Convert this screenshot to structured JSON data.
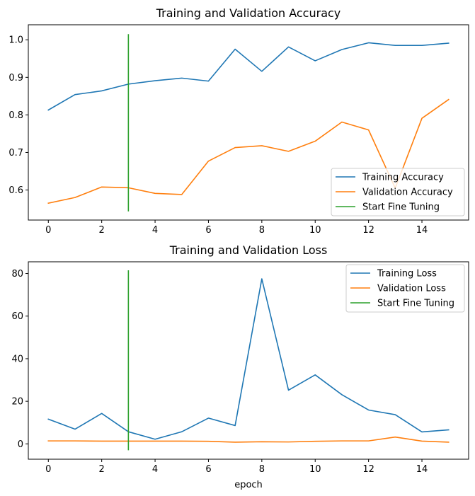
{
  "chart_data": [
    {
      "type": "line",
      "title": "Training and Validation Accuracy",
      "xlabel": "",
      "ylabel": "",
      "xlim": [
        -0.75,
        15.75
      ],
      "ylim": [
        0.52,
        1.04
      ],
      "xticks": [
        0,
        2,
        4,
        6,
        8,
        10,
        12,
        14
      ],
      "xtick_labels": [
        "0",
        "2",
        "4",
        "6",
        "8",
        "10",
        "12",
        "14"
      ],
      "yticks": [
        0.6,
        0.7,
        0.8,
        0.9,
        1.0
      ],
      "ytick_labels": [
        "0.6",
        "0.7",
        "0.8",
        "0.9",
        "1.0"
      ],
      "legend_position": "lower-right",
      "x": [
        0,
        1,
        2,
        3,
        4,
        5,
        6,
        7,
        8,
        9,
        10,
        11,
        12,
        13,
        14,
        15
      ],
      "series": [
        {
          "name": "Training Accuracy",
          "color": "#1f77b4",
          "values": [
            0.813,
            0.854,
            0.864,
            0.882,
            0.891,
            0.898,
            0.89,
            0.975,
            0.916,
            0.981,
            0.944,
            0.974,
            0.992,
            0.985,
            0.985,
            0.991
          ]
        },
        {
          "name": "Validation Accuracy",
          "color": "#ff7f0e",
          "values": [
            0.565,
            0.58,
            0.608,
            0.606,
            0.591,
            0.588,
            0.677,
            0.713,
            0.718,
            0.703,
            0.73,
            0.781,
            0.76,
            0.605,
            0.791,
            0.841
          ]
        }
      ],
      "vline": {
        "name": "Start Fine Tuning",
        "color": "#2ca02c",
        "x": 3,
        "y_range": [
          0.543,
          1.015
        ]
      }
    },
    {
      "type": "line",
      "title": "Training and Validation Loss",
      "xlabel": "epoch",
      "ylabel": "",
      "xlim": [
        -0.75,
        15.75
      ],
      "ylim": [
        -7.2,
        85.5
      ],
      "xticks": [
        0,
        2,
        4,
        6,
        8,
        10,
        12,
        14
      ],
      "xtick_labels": [
        "0",
        "2",
        "4",
        "6",
        "8",
        "10",
        "12",
        "14"
      ],
      "yticks": [
        0,
        20,
        40,
        60,
        80
      ],
      "ytick_labels": [
        "0",
        "20",
        "40",
        "60",
        "80"
      ],
      "legend_position": "upper-right",
      "x": [
        0,
        1,
        2,
        3,
        4,
        5,
        6,
        7,
        8,
        9,
        10,
        11,
        12,
        13,
        14,
        15
      ],
      "series": [
        {
          "name": "Training Loss",
          "color": "#1f77b4",
          "values": [
            11.6,
            6.9,
            14.3,
            5.7,
            2.2,
            5.7,
            12.1,
            8.6,
            77.5,
            25.2,
            32.4,
            23.1,
            15.9,
            13.7,
            5.6,
            6.6
          ]
        },
        {
          "name": "Validation Loss",
          "color": "#ff7f0e",
          "values": [
            1.4,
            1.4,
            1.3,
            1.3,
            1.3,
            1.3,
            1.2,
            0.8,
            1.0,
            0.9,
            1.2,
            1.4,
            1.4,
            3.2,
            1.3,
            0.8
          ]
        }
      ],
      "vline": {
        "name": "Start Fine Tuning",
        "color": "#2ca02c",
        "x": 3,
        "y_range": [
          -3.0,
          81.5
        ]
      }
    }
  ]
}
